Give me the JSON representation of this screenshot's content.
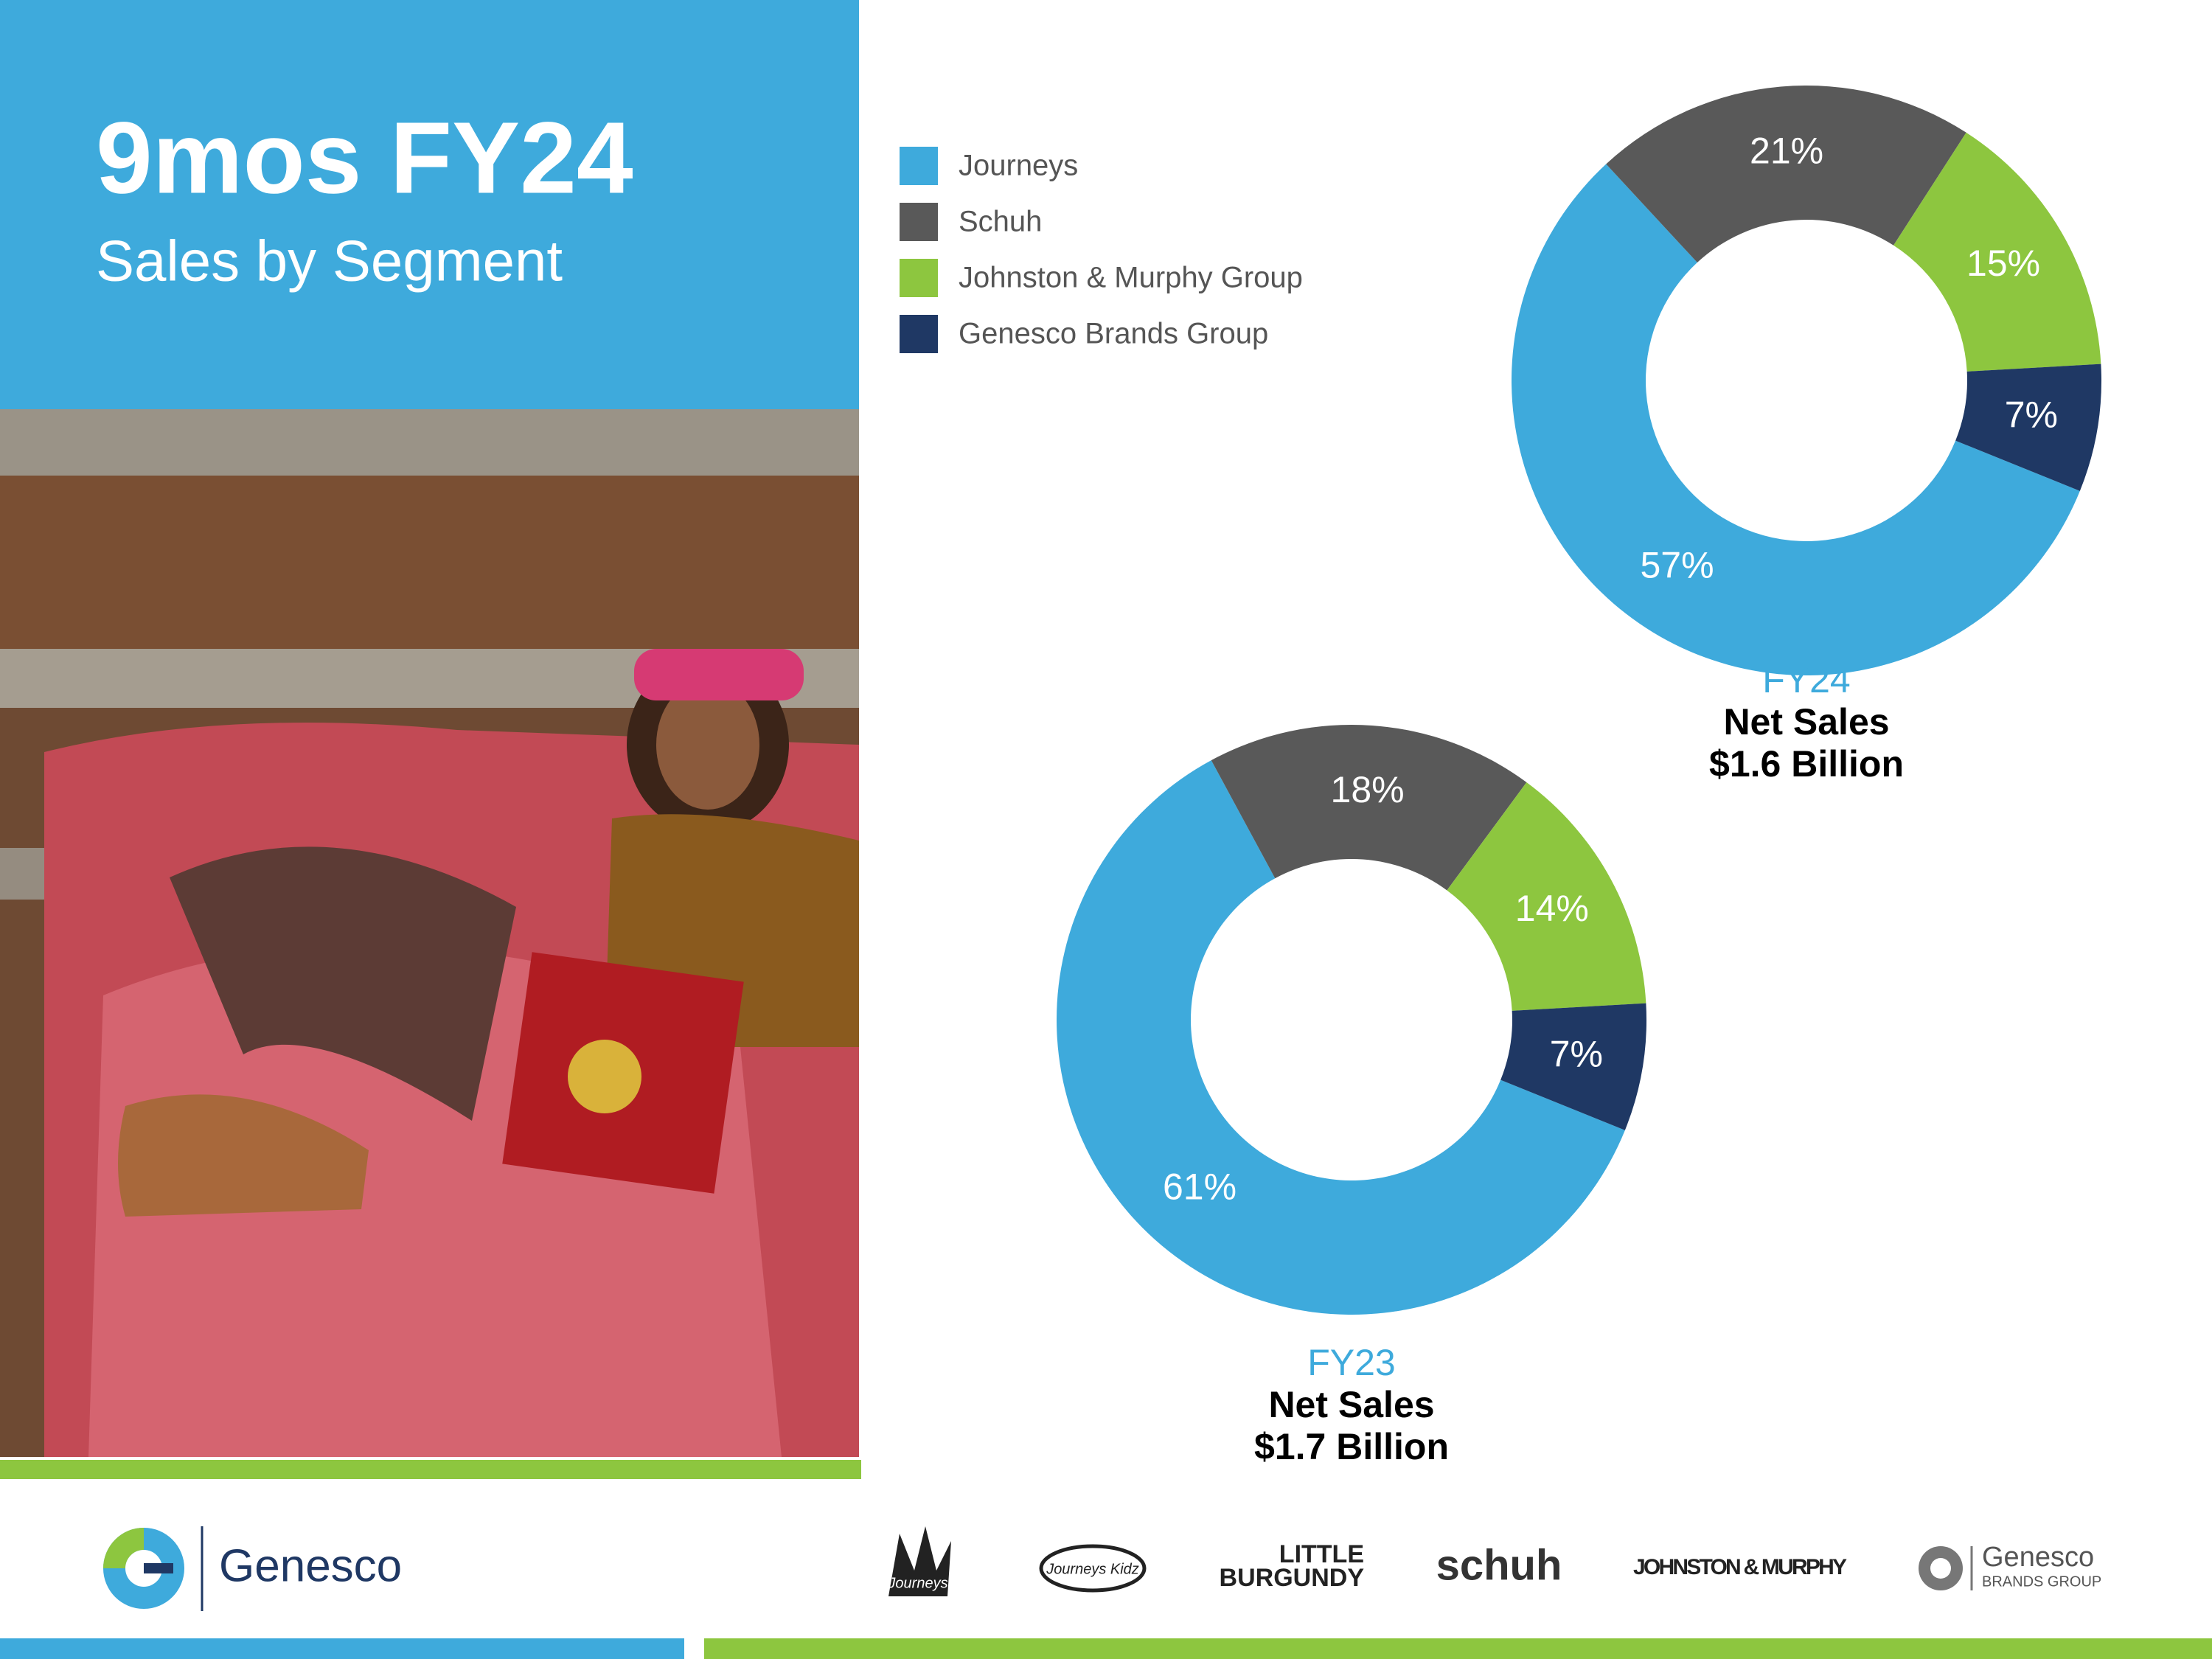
{
  "header": {
    "title": "9mos FY24",
    "subtitle": "Sales by Segment"
  },
  "legend": {
    "labels": [
      "Journeys",
      "Schuh",
      "Johnston & Murphy Group",
      "Genesco Brands Group"
    ],
    "colors": [
      "#3eaadc",
      "#595959",
      "#8dc63f",
      "#1f3864"
    ]
  },
  "chart_data": [
    {
      "type": "donut",
      "label": "FY24",
      "caption": [
        "Net Sales",
        "$1.6 Billion"
      ],
      "values": [
        57,
        21,
        15,
        7
      ],
      "value_labels": [
        "57%",
        "21%",
        "15%",
        "7%"
      ]
    },
    {
      "type": "donut",
      "label": "FY23",
      "caption": [
        "Net Sales",
        "$1.7 Billion"
      ],
      "values": [
        61,
        18,
        14,
        7
      ],
      "value_labels": [
        "61%",
        "18%",
        "14%",
        "7%"
      ]
    }
  ],
  "footer": {
    "company": "Genesco",
    "brands": [
      "Journeys",
      "Journeys Kidz",
      "LITTLE",
      "BURGUNDY",
      "schuh",
      "JOHNSTON & MURPHY",
      "Genesco",
      "BRANDS GROUP"
    ]
  }
}
